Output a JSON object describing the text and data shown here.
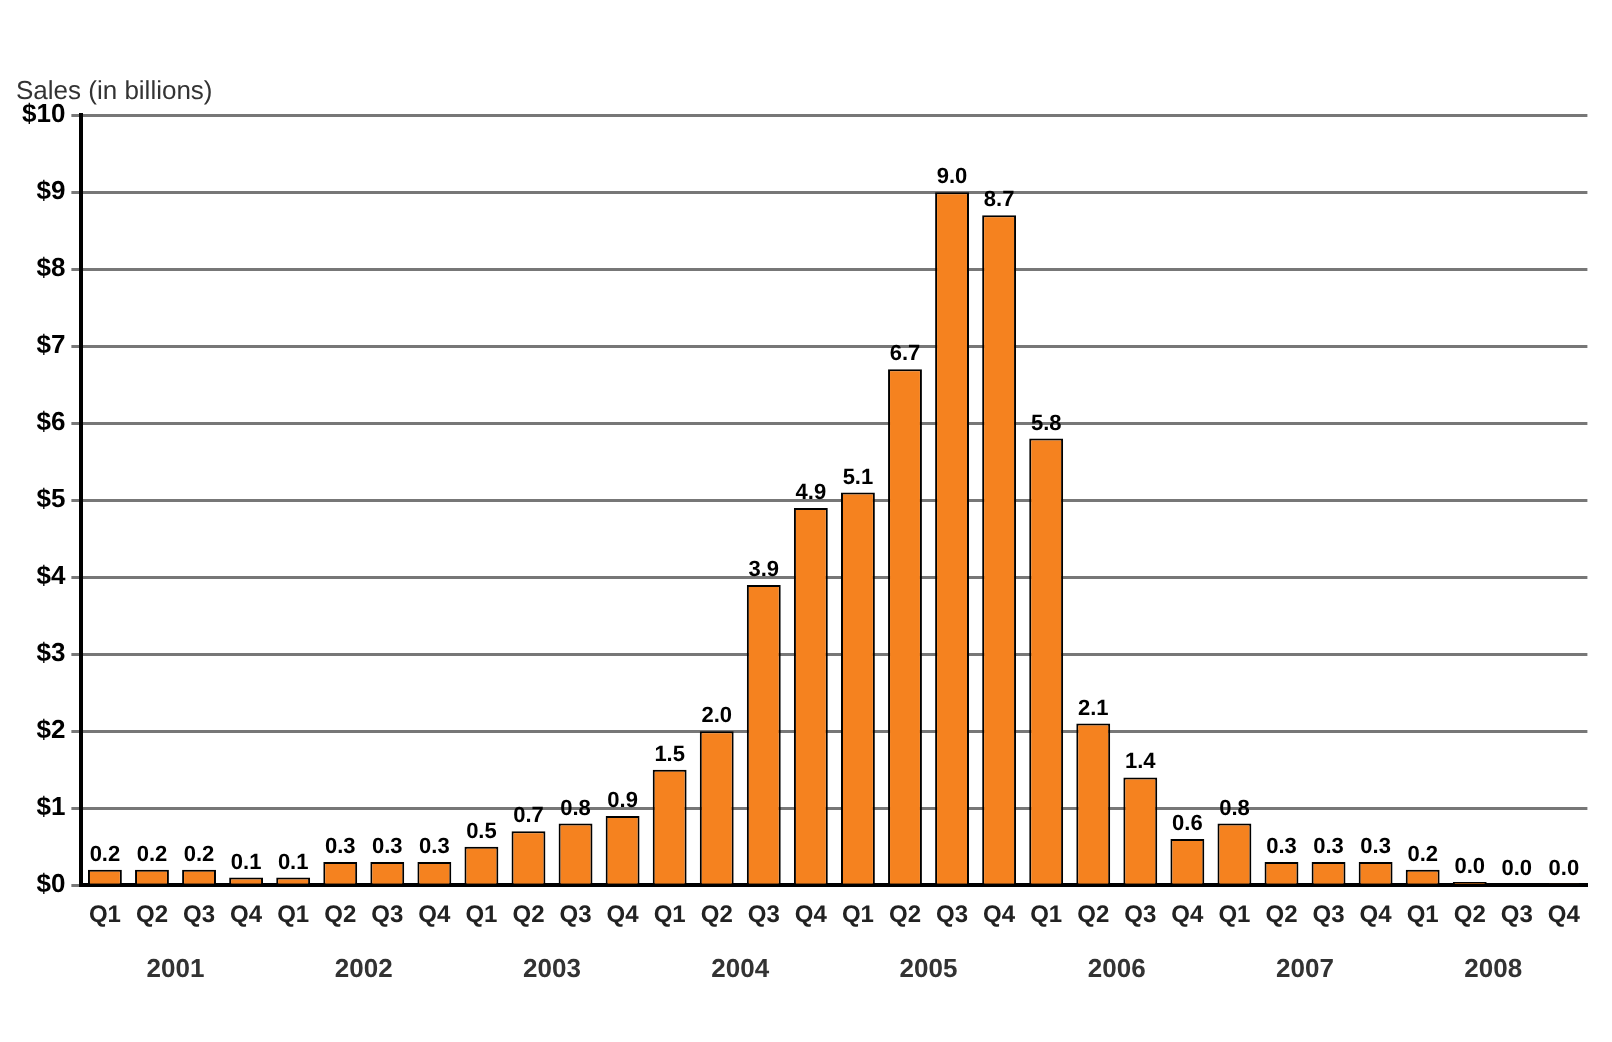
{
  "chart_data": {
    "type": "bar",
    "ylabel": "Sales (in billions)",
    "categories": [
      "Q1",
      "Q2",
      "Q3",
      "Q4",
      "Q1",
      "Q2",
      "Q3",
      "Q4",
      "Q1",
      "Q2",
      "Q3",
      "Q4",
      "Q1",
      "Q2",
      "Q3",
      "Q4",
      "Q1",
      "Q2",
      "Q3",
      "Q4",
      "Q1",
      "Q2",
      "Q3",
      "Q4",
      "Q1",
      "Q2",
      "Q3",
      "Q4",
      "Q1",
      "Q2",
      "Q3",
      "Q4"
    ],
    "values": [
      0.2,
      0.2,
      0.2,
      0.1,
      0.1,
      0.3,
      0.3,
      0.3,
      0.5,
      0.7,
      0.8,
      0.9,
      1.5,
      2.0,
      3.9,
      4.9,
      5.1,
      6.7,
      9.0,
      8.7,
      5.8,
      2.1,
      1.4,
      0.6,
      0.8,
      0.3,
      0.3,
      0.3,
      0.2,
      0.04,
      0.02,
      0.01
    ],
    "value_labels": [
      "0.2",
      "0.2",
      "0.2",
      "0.1",
      "0.1",
      "0.3",
      "0.3",
      "0.3",
      "0.5",
      "0.7",
      "0.8",
      "0.9",
      "1.5",
      "2.0",
      "3.9",
      "4.9",
      "5.1",
      "6.7",
      "9.0",
      "8.7",
      "5.8",
      "2.1",
      "1.4",
      "0.6",
      "0.8",
      "0.3",
      "0.3",
      "0.3",
      "0.2",
      "0.0",
      "0.0",
      "0.0"
    ],
    "color": "#f5821f",
    "ylim": [
      0,
      10
    ],
    "yticks": [
      {
        "value": 0,
        "label": "$0"
      },
      {
        "value": 1,
        "label": "$1"
      },
      {
        "value": 2,
        "label": "$2"
      },
      {
        "value": 3,
        "label": "$3"
      },
      {
        "value": 4,
        "label": "$4"
      },
      {
        "value": 5,
        "label": "$5"
      },
      {
        "value": 6,
        "label": "$6"
      },
      {
        "value": 7,
        "label": "$7"
      },
      {
        "value": 8,
        "label": "$8"
      },
      {
        "value": 9,
        "label": "$9"
      },
      {
        "value": 10,
        "label": "$10"
      }
    ],
    "grid": "y",
    "annotations": [
      "2001",
      "2002",
      "2003",
      "2004",
      "2005",
      "2006",
      "2007",
      "2008"
    ]
  }
}
